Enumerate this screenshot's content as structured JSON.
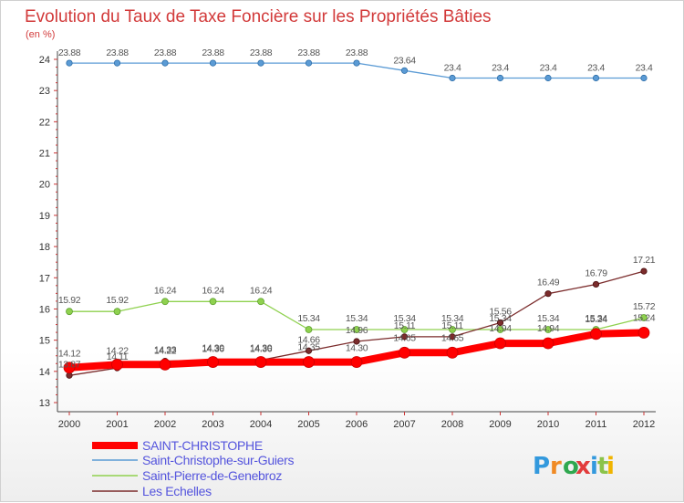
{
  "chart_data": {
    "type": "line",
    "title": "Evolution du Taux de Taxe Foncière sur les Propriétés Bâties",
    "subtitle": "(en %)",
    "x": [
      "2000",
      "2001",
      "2002",
      "2003",
      "2004",
      "2005",
      "2006",
      "2007",
      "2008",
      "2009",
      "2010",
      "2011",
      "2012"
    ],
    "ylim": [
      13,
      24
    ],
    "yticks": [
      "13",
      "14",
      "15",
      "16",
      "17",
      "18",
      "19",
      "20",
      "21",
      "22",
      "23",
      "24"
    ],
    "grid": false,
    "legend_position": "bottom-left",
    "series": [
      {
        "name": "SAINT-CHRISTOPHE",
        "color": "#ff0000",
        "values": [
          14.12,
          14.22,
          14.22,
          14.3,
          14.3,
          14.3,
          14.3,
          14.6,
          14.6,
          14.9,
          14.9,
          15.2,
          15.24
        ],
        "labels": [
          "14.12",
          "14.22",
          "14.22",
          "14.30",
          "14.30",
          "",
          "14.30",
          "",
          "",
          "",
          "",
          "",
          ""
        ]
      },
      {
        "name": "Saint-Christophe-sur-Guiers",
        "color": "#5b9bd5",
        "values": [
          23.88,
          23.88,
          23.88,
          23.88,
          23.88,
          23.88,
          23.88,
          23.64,
          23.4,
          23.4,
          23.4,
          23.4,
          23.4
        ],
        "labels": [
          "23.88",
          "23.88",
          "23.88",
          "23.88",
          "23.88",
          "23.88",
          "23.88",
          "23.64",
          "23.4",
          "23.4",
          "23.4",
          "23.4",
          "23.4"
        ]
      },
      {
        "name": "Saint-Pierre-de-Genebroz",
        "color": "#8fd14f",
        "values": [
          15.92,
          15.92,
          16.24,
          16.24,
          16.24,
          15.34,
          15.34,
          15.34,
          15.34,
          15.34,
          15.34,
          15.34,
          15.72
        ],
        "labels": [
          "15.92",
          "15.92",
          "16.24",
          "16.24",
          "16.24",
          "15.34",
          "15.34",
          "15.34",
          "15.34",
          "15.34",
          "15.34",
          "15.34",
          "15.72"
        ]
      },
      {
        "name": "Les Echelles",
        "color": "#7b2c2c",
        "values": [
          13.87,
          14.11,
          14.33,
          14.36,
          14.36,
          14.66,
          14.96,
          15.11,
          15.11,
          15.56,
          16.49,
          16.79,
          17.21
        ],
        "labels": [
          "13.87",
          "14.11",
          "14.33",
          "14.36",
          "14.36",
          "14.66",
          "14.96",
          "15.11",
          "15.11",
          "15.56",
          "16.49",
          "16.79",
          "17.21"
        ]
      }
    ],
    "extra_labels": [
      "14.35",
      "14.65",
      "14.65",
      "14.94",
      "14.94",
      "15.24",
      "15.24"
    ]
  },
  "logo": {
    "text": "Proxiti",
    "colors": [
      "#3399dd",
      "#f08a24",
      "#2fa84f",
      "#e23b3b",
      "#3399dd",
      "#8bc34a",
      "#f0b400"
    ]
  }
}
